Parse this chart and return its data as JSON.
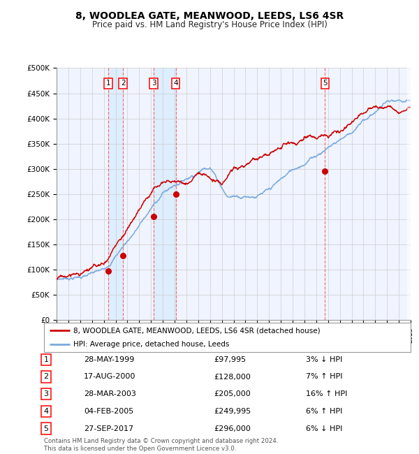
{
  "title": "8, WOODLEA GATE, MEANWOOD, LEEDS, LS6 4SR",
  "subtitle": "Price paid vs. HM Land Registry's House Price Index (HPI)",
  "x_start_year": 1995,
  "x_end_year": 2025,
  "y_min": 0,
  "y_max": 500000,
  "y_ticks": [
    0,
    50000,
    100000,
    150000,
    200000,
    250000,
    300000,
    350000,
    400000,
    450000,
    500000
  ],
  "y_tick_labels": [
    "£0",
    "£50K",
    "£100K",
    "£150K",
    "£200K",
    "£250K",
    "£300K",
    "£350K",
    "£400K",
    "£450K",
    "£500K"
  ],
  "transactions": [
    {
      "num": 1,
      "date_dec": 1999.38,
      "price": 97995,
      "label": "1",
      "date_str": "28-MAY-1999",
      "pct": "3%",
      "dir": "↓"
    },
    {
      "num": 2,
      "date_dec": 2000.63,
      "price": 128000,
      "label": "2",
      "date_str": "17-AUG-2000",
      "pct": "7%",
      "dir": "↑"
    },
    {
      "num": 3,
      "date_dec": 2003.23,
      "price": 205000,
      "label": "3",
      "date_str": "28-MAR-2003",
      "pct": "16%",
      "dir": "↑"
    },
    {
      "num": 4,
      "date_dec": 2005.09,
      "price": 249995,
      "label": "4",
      "date_str": "04-FEB-2005",
      "pct": "6%",
      "dir": "↑"
    },
    {
      "num": 5,
      "date_dec": 2017.75,
      "price": 296000,
      "label": "5",
      "date_str": "27-SEP-2017",
      "pct": "6%",
      "dir": "↓"
    }
  ],
  "sale_color": "#cc0000",
  "hpi_color": "#7aaadd",
  "vspan_color": "#ddeeff",
  "vline_color": "#ff5555",
  "grid_color": "#cccccc",
  "bg_color": "#ffffff",
  "plot_bg_color": "#f0f4ff",
  "footer_text": "Contains HM Land Registry data © Crown copyright and database right 2024.\nThis data is licensed under the Open Government Licence v3.0.",
  "legend_label_sale": "8, WOODLEA GATE, MEANWOOD, LEEDS, LS6 4SR (detached house)",
  "legend_label_hpi": "HPI: Average price, detached house, Leeds",
  "table_rows": [
    [
      "1",
      "28-MAY-1999",
      "£97,995",
      "3% ↓ HPI"
    ],
    [
      "2",
      "17-AUG-2000",
      "£128,000",
      "7% ↑ HPI"
    ],
    [
      "3",
      "28-MAR-2003",
      "£205,000",
      "16% ↑ HPI"
    ],
    [
      "4",
      "04-FEB-2005",
      "£249,995",
      "6% ↑ HPI"
    ],
    [
      "5",
      "27-SEP-2017",
      "£296,000",
      "6% ↓ HPI"
    ]
  ]
}
